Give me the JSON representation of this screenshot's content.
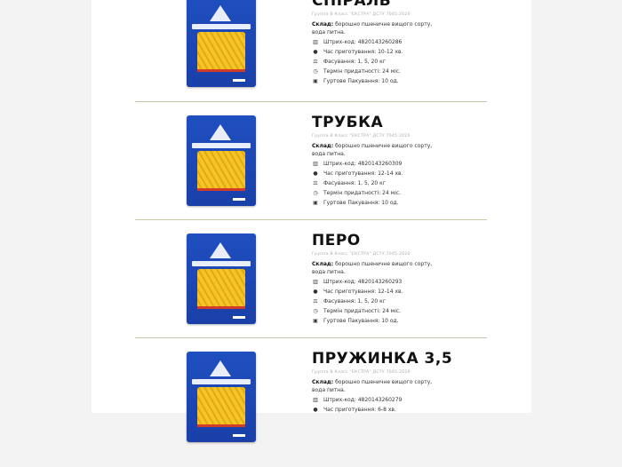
{
  "products": [
    {
      "title": "СПІРАЛЬ",
      "subtitle": "Группа В Класс \"ЕКСТРА\" ДСТУ 7045:2020",
      "composition_label": "Склад:",
      "composition": "борошно пшеничне вищого сорту, вода питна.",
      "barcode_label": "Штрих-код:",
      "barcode": "4820143260286",
      "cook_label": "Час приготування:",
      "cook": "10-12 хв.",
      "pack_label": "Фасування:",
      "pack": "1, 5, 20 кг",
      "shelf_label": "Термін придатності:",
      "shelf": "24 міс.",
      "bulk_label": "Гуртове Пакування:",
      "bulk": "10 од."
    },
    {
      "title": "ТРУБКА",
      "subtitle": "Группа В Класс \"ЕКСТРА\" ДСТУ 7045:2020",
      "composition_label": "Склад:",
      "composition": "борошно пшеничне вищого сорту, вода питна.",
      "barcode_label": "Штрих-код:",
      "barcode": "4820143260309",
      "cook_label": "Час приготування:",
      "cook": "12-14 хв.",
      "pack_label": "Фасування:",
      "pack": "1, 5, 20 кг",
      "shelf_label": "Термін придатності:",
      "shelf": "24 міс.",
      "bulk_label": "Гуртове Пакування:",
      "bulk": "10 од."
    },
    {
      "title": "ПЕРО",
      "subtitle": "Группа В Класс \"ЕКСТРА\" ДСТУ 7045:2020",
      "composition_label": "Склад:",
      "composition": "борошно пшеничне вищого сорту, вода питна.",
      "barcode_label": "Штрих-код:",
      "barcode": "4820143260293",
      "cook_label": "Час приготування:",
      "cook": "12-14 хв.",
      "pack_label": "Фасування:",
      "pack": "1, 5, 20 кг",
      "shelf_label": "Термін придатності:",
      "shelf": "24 міс.",
      "bulk_label": "Гуртове Пакування:",
      "bulk": "10 од."
    },
    {
      "title": "ПРУЖИНКА 3,5",
      "subtitle": "Группа В Класс \"ЕКСТРА\" ДСТУ 7045:2020",
      "composition_label": "Склад:",
      "composition": "борошно пшеничне вищого сорту, вода питна.",
      "barcode_label": "Штрих-код:",
      "barcode": "4820143260279",
      "cook_label": "Час приготування:",
      "cook": "6-8 хв."
    }
  ],
  "colors": {
    "pack_blue": "#1f4fc0",
    "pasta": "#f3c528",
    "divider": "#c9c6a8"
  }
}
